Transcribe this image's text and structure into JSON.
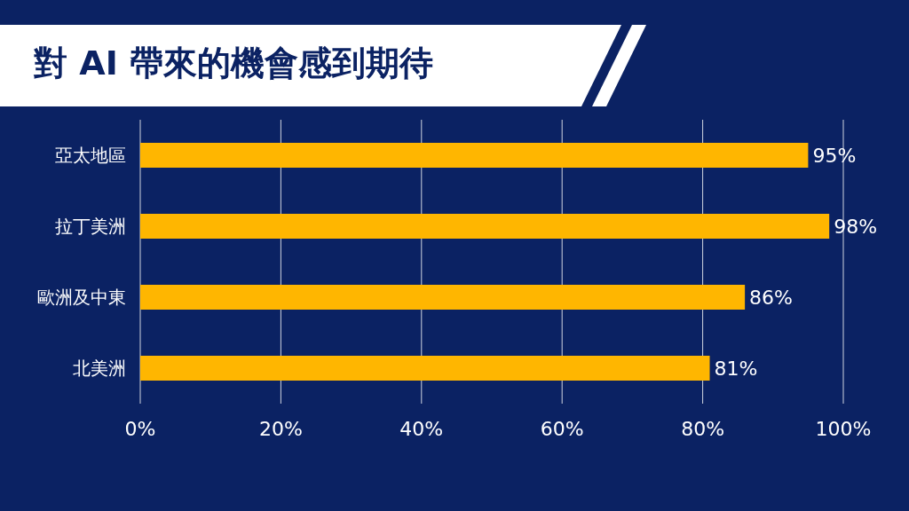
{
  "chart_data": {
    "type": "bar",
    "orientation": "horizontal",
    "title": "對 AI 帶來的機會感到期待",
    "categories": [
      "亞太地區",
      "拉丁美洲",
      "歐洲及中東",
      "北美洲"
    ],
    "values": [
      95,
      98,
      86,
      81
    ],
    "value_labels": [
      "95%",
      "98%",
      "86%",
      "81%"
    ],
    "color": "#ffb600",
    "xlim": [
      0,
      100
    ],
    "xticks": [
      {
        "value": 0,
        "label": "0%"
      },
      {
        "value": 20,
        "label": "20%"
      },
      {
        "value": 40,
        "label": "40%"
      },
      {
        "value": 60,
        "label": "60%"
      },
      {
        "value": 80,
        "label": "80%"
      },
      {
        "value": 100,
        "label": "100%"
      }
    ],
    "grid": "x",
    "legend": false
  }
}
